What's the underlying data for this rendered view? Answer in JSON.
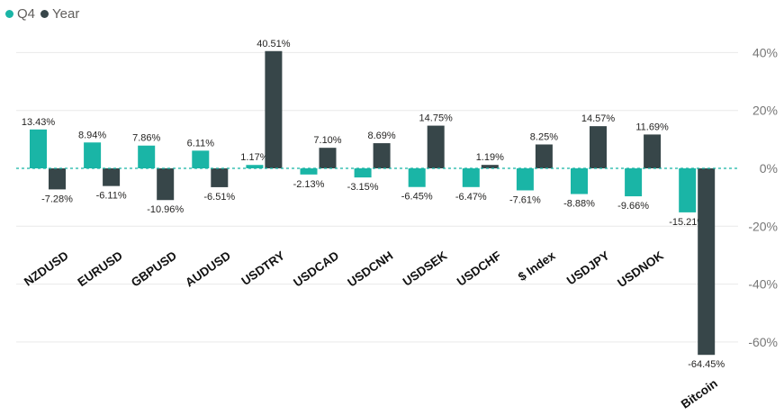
{
  "chart_data": {
    "type": "bar",
    "title": "",
    "xlabel": "",
    "ylabel": "",
    "categories": [
      "NZDUSD",
      "EURUSD",
      "GBPUSD",
      "AUDUSD",
      "USDTRY",
      "USDCAD",
      "USDCNH",
      "USDSEK",
      "USDCHF",
      "$ Index",
      "USDJPY",
      "USDNOK",
      "Bitcoin"
    ],
    "series": [
      {
        "name": "Q4",
        "color": "#1ab5a6",
        "values": [
          13.43,
          8.94,
          7.86,
          6.11,
          1.17,
          -2.13,
          -3.15,
          -6.45,
          -6.47,
          -7.61,
          -8.88,
          -9.66,
          -15.21
        ],
        "labels": [
          "13.43%",
          "8.94%",
          "7.86%",
          "6.11%",
          "1.17%",
          "-2.13%",
          "-3.15%",
          "-6.45%",
          "-6.47%",
          "-7.61%",
          "-8.88%",
          "-9.66%",
          "-15.21%"
        ]
      },
      {
        "name": "Year",
        "color": "#374649",
        "values": [
          -7.28,
          -6.11,
          -10.96,
          -6.51,
          40.51,
          7.1,
          8.69,
          14.75,
          1.19,
          8.25,
          14.57,
          11.69,
          -64.45
        ],
        "labels": [
          "-7.28%",
          "-6.11%",
          "-10.96%",
          "-6.51%",
          "40.51%",
          "7.10%",
          "8.69%",
          "14.75%",
          "1.19%",
          "8.25%",
          "14.57%",
          "11.69%",
          "-64.45%"
        ]
      }
    ],
    "ylim": [
      -64.45,
      46
    ],
    "yticks": [
      40,
      20,
      0,
      -20,
      -40,
      -60
    ],
    "ytick_labels": [
      "40%",
      "20%",
      "0%",
      "-20%",
      "-40%",
      "-60%"
    ],
    "y_axis_side": "right",
    "grid": true,
    "legend": "top-left",
    "zero_line": "dashed"
  }
}
